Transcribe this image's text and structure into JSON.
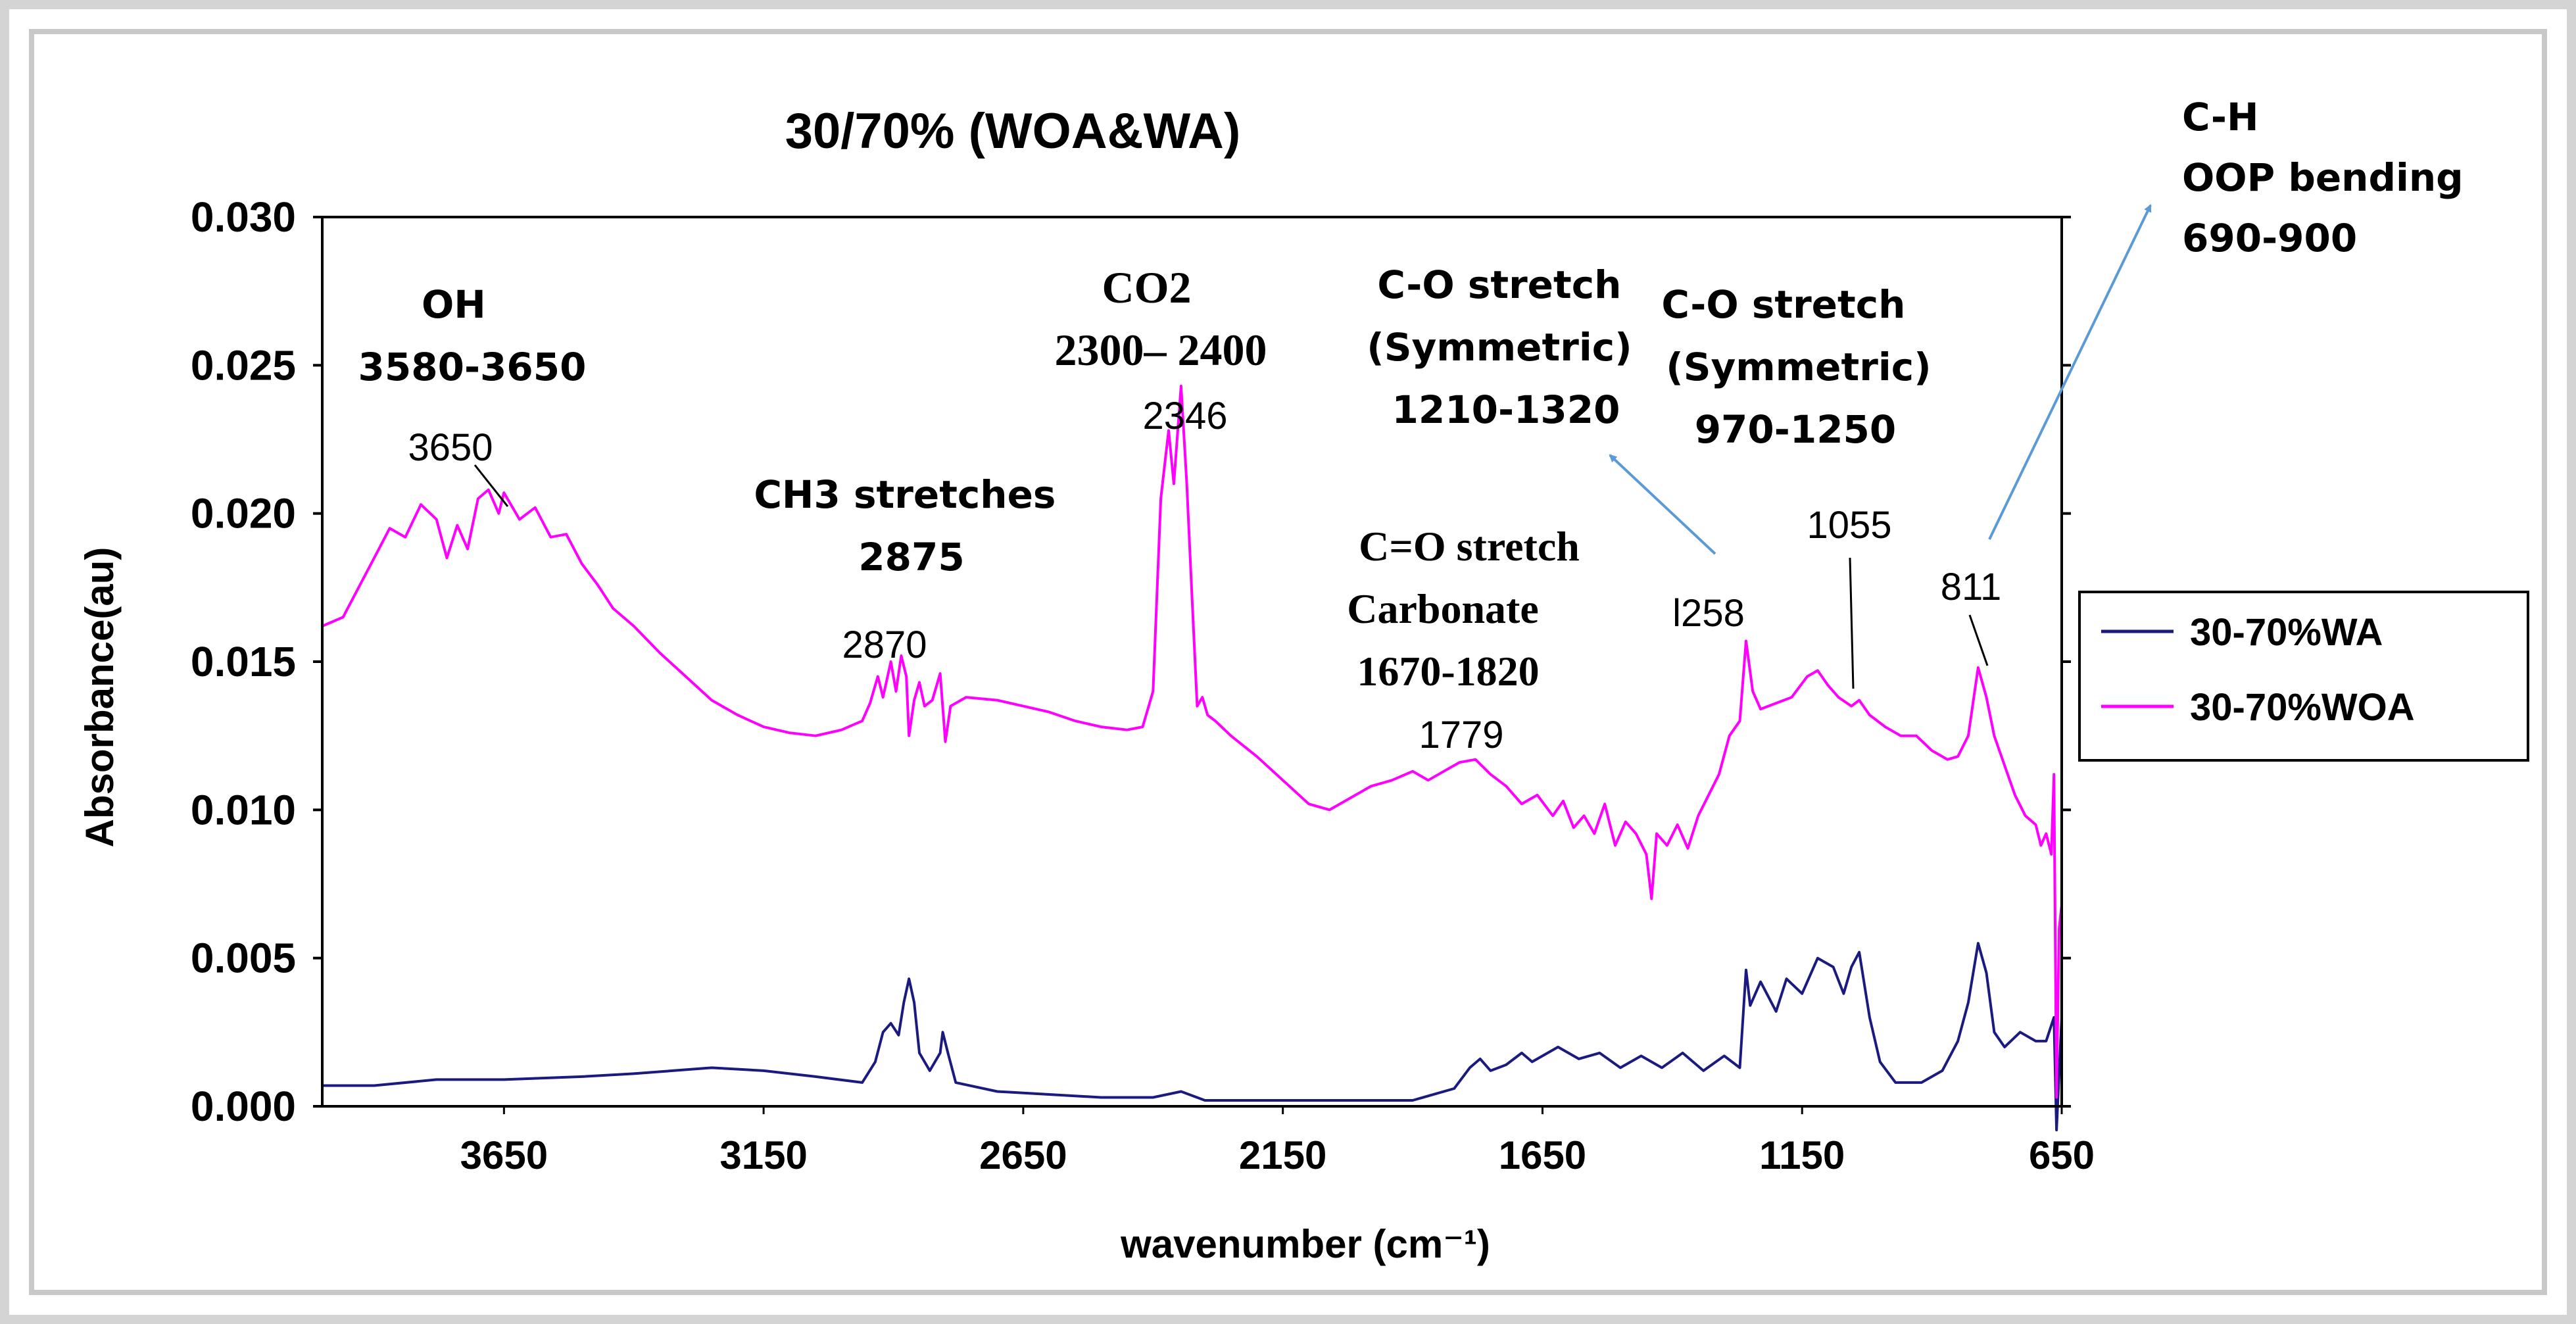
{
  "chart_data": {
    "type": "line",
    "title": "30/70% (WOA&WA)",
    "xlabel": "wavenumber (cm⁻¹)",
    "ylabel": "Absorbance(au)",
    "xlim": [
      4000,
      650
    ],
    "ylim": [
      0,
      0.03
    ],
    "x_ticks": [
      3650,
      3150,
      2650,
      2150,
      1650,
      1150,
      650
    ],
    "x_tick_labels": [
      "3650",
      "3150",
      "2650",
      "2150",
      "1650",
      "1150",
      "650"
    ],
    "y_ticks": [
      0,
      0.005,
      0.01,
      0.015,
      0.02,
      0.025,
      0.03
    ],
    "y_tick_labels": [
      "0.000",
      "0.005",
      "0.010",
      "0.015",
      "0.020",
      "0.025",
      "0.030"
    ],
    "legend_position": "right",
    "series": [
      {
        "name": "30-70%WA",
        "color": "#1a1a80",
        "points": [
          [
            4000,
            0.0007
          ],
          [
            3900,
            0.0007
          ],
          [
            3780,
            0.0009
          ],
          [
            3650,
            0.0009
          ],
          [
            3500,
            0.001
          ],
          [
            3400,
            0.0011
          ],
          [
            3250,
            0.0013
          ],
          [
            3150,
            0.0012
          ],
          [
            3050,
            0.001
          ],
          [
            2960,
            0.0008
          ],
          [
            2935,
            0.0015
          ],
          [
            2920,
            0.0025
          ],
          [
            2905,
            0.0028
          ],
          [
            2890,
            0.0024
          ],
          [
            2880,
            0.0035
          ],
          [
            2870,
            0.0043
          ],
          [
            2860,
            0.0035
          ],
          [
            2850,
            0.0018
          ],
          [
            2830,
            0.0012
          ],
          [
            2810,
            0.0018
          ],
          [
            2805,
            0.0025
          ],
          [
            2795,
            0.0018
          ],
          [
            2780,
            0.0008
          ],
          [
            2700,
            0.0005
          ],
          [
            2600,
            0.0004
          ],
          [
            2500,
            0.0003
          ],
          [
            2400,
            0.0003
          ],
          [
            2346,
            0.0005
          ],
          [
            2300,
            0.0002
          ],
          [
            2150,
            0.0002
          ],
          [
            1900,
            0.0002
          ],
          [
            1820,
            0.0006
          ],
          [
            1790,
            0.0013
          ],
          [
            1770,
            0.0016
          ],
          [
            1750,
            0.0012
          ],
          [
            1720,
            0.0014
          ],
          [
            1690,
            0.0018
          ],
          [
            1670,
            0.0015
          ],
          [
            1620,
            0.002
          ],
          [
            1580,
            0.0016
          ],
          [
            1540,
            0.0018
          ],
          [
            1500,
            0.0013
          ],
          [
            1460,
            0.0017
          ],
          [
            1420,
            0.0013
          ],
          [
            1380,
            0.0018
          ],
          [
            1340,
            0.0012
          ],
          [
            1300,
            0.0017
          ],
          [
            1270,
            0.0013
          ],
          [
            1258,
            0.0046
          ],
          [
            1250,
            0.0034
          ],
          [
            1230,
            0.0042
          ],
          [
            1200,
            0.0032
          ],
          [
            1180,
            0.0043
          ],
          [
            1150,
            0.0038
          ],
          [
            1120,
            0.005
          ],
          [
            1090,
            0.0047
          ],
          [
            1070,
            0.0038
          ],
          [
            1055,
            0.0047
          ],
          [
            1040,
            0.0052
          ],
          [
            1020,
            0.003
          ],
          [
            1000,
            0.0015
          ],
          [
            970,
            0.0008
          ],
          [
            920,
            0.0008
          ],
          [
            880,
            0.0012
          ],
          [
            850,
            0.0022
          ],
          [
            830,
            0.0035
          ],
          [
            811,
            0.0055
          ],
          [
            795,
            0.0045
          ],
          [
            780,
            0.0025
          ],
          [
            760,
            0.002
          ],
          [
            730,
            0.0025
          ],
          [
            700,
            0.0022
          ],
          [
            680,
            0.0022
          ],
          [
            665,
            0.003
          ],
          [
            660,
            -0.0008
          ],
          [
            650,
            0.003
          ]
        ]
      },
      {
        "name": "30-70%WOA",
        "color": "#ff00ff",
        "points": [
          [
            4000,
            0.0162
          ],
          [
            3960,
            0.0165
          ],
          [
            3930,
            0.0175
          ],
          [
            3900,
            0.0185
          ],
          [
            3870,
            0.0195
          ],
          [
            3840,
            0.0192
          ],
          [
            3810,
            0.0203
          ],
          [
            3780,
            0.0198
          ],
          [
            3760,
            0.0185
          ],
          [
            3740,
            0.0196
          ],
          [
            3720,
            0.0188
          ],
          [
            3700,
            0.0205
          ],
          [
            3680,
            0.0208
          ],
          [
            3660,
            0.02
          ],
          [
            3650,
            0.0207
          ],
          [
            3620,
            0.0198
          ],
          [
            3590,
            0.0202
          ],
          [
            3560,
            0.0192
          ],
          [
            3530,
            0.0193
          ],
          [
            3500,
            0.0183
          ],
          [
            3470,
            0.0176
          ],
          [
            3440,
            0.0168
          ],
          [
            3400,
            0.0162
          ],
          [
            3350,
            0.0153
          ],
          [
            3300,
            0.0145
          ],
          [
            3250,
            0.0137
          ],
          [
            3200,
            0.0132
          ],
          [
            3150,
            0.0128
          ],
          [
            3100,
            0.0126
          ],
          [
            3050,
            0.0125
          ],
          [
            3000,
            0.0127
          ],
          [
            2960,
            0.013
          ],
          [
            2945,
            0.0136
          ],
          [
            2930,
            0.0145
          ],
          [
            2920,
            0.0138
          ],
          [
            2905,
            0.015
          ],
          [
            2895,
            0.014
          ],
          [
            2885,
            0.0152
          ],
          [
            2875,
            0.0145
          ],
          [
            2870,
            0.0125
          ],
          [
            2860,
            0.0137
          ],
          [
            2850,
            0.0143
          ],
          [
            2840,
            0.0135
          ],
          [
            2825,
            0.0137
          ],
          [
            2810,
            0.0146
          ],
          [
            2800,
            0.0123
          ],
          [
            2790,
            0.0135
          ],
          [
            2760,
            0.0138
          ],
          [
            2700,
            0.0137
          ],
          [
            2650,
            0.0135
          ],
          [
            2600,
            0.0133
          ],
          [
            2550,
            0.013
          ],
          [
            2500,
            0.0128
          ],
          [
            2450,
            0.0127
          ],
          [
            2420,
            0.0128
          ],
          [
            2400,
            0.014
          ],
          [
            2385,
            0.0205
          ],
          [
            2370,
            0.0228
          ],
          [
            2360,
            0.021
          ],
          [
            2346,
            0.0243
          ],
          [
            2335,
            0.021
          ],
          [
            2325,
            0.0172
          ],
          [
            2315,
            0.0135
          ],
          [
            2305,
            0.0138
          ],
          [
            2295,
            0.0132
          ],
          [
            2280,
            0.013
          ],
          [
            2250,
            0.0125
          ],
          [
            2200,
            0.0118
          ],
          [
            2150,
            0.011
          ],
          [
            2100,
            0.0102
          ],
          [
            2060,
            0.01
          ],
          [
            2020,
            0.0104
          ],
          [
            1980,
            0.0108
          ],
          [
            1940,
            0.011
          ],
          [
            1900,
            0.0113
          ],
          [
            1870,
            0.011
          ],
          [
            1840,
            0.0113
          ],
          [
            1810,
            0.0116
          ],
          [
            1779,
            0.0117
          ],
          [
            1750,
            0.0112
          ],
          [
            1720,
            0.0108
          ],
          [
            1690,
            0.0102
          ],
          [
            1660,
            0.0105
          ],
          [
            1630,
            0.0098
          ],
          [
            1610,
            0.0103
          ],
          [
            1590,
            0.0094
          ],
          [
            1570,
            0.0098
          ],
          [
            1550,
            0.0092
          ],
          [
            1530,
            0.0102
          ],
          [
            1510,
            0.0088
          ],
          [
            1490,
            0.0096
          ],
          [
            1470,
            0.0092
          ],
          [
            1450,
            0.0085
          ],
          [
            1440,
            0.007
          ],
          [
            1430,
            0.0092
          ],
          [
            1410,
            0.0088
          ],
          [
            1390,
            0.0095
          ],
          [
            1370,
            0.0087
          ],
          [
            1350,
            0.0098
          ],
          [
            1330,
            0.0105
          ],
          [
            1310,
            0.0112
          ],
          [
            1290,
            0.0125
          ],
          [
            1270,
            0.013
          ],
          [
            1258,
            0.0157
          ],
          [
            1245,
            0.014
          ],
          [
            1230,
            0.0134
          ],
          [
            1200,
            0.0136
          ],
          [
            1170,
            0.0138
          ],
          [
            1140,
            0.0145
          ],
          [
            1120,
            0.0147
          ],
          [
            1100,
            0.0142
          ],
          [
            1080,
            0.0138
          ],
          [
            1055,
            0.0135
          ],
          [
            1040,
            0.0137
          ],
          [
            1020,
            0.0132
          ],
          [
            990,
            0.0128
          ],
          [
            960,
            0.0125
          ],
          [
            930,
            0.0125
          ],
          [
            900,
            0.012
          ],
          [
            870,
            0.0117
          ],
          [
            850,
            0.0118
          ],
          [
            830,
            0.0125
          ],
          [
            811,
            0.0148
          ],
          [
            795,
            0.0138
          ],
          [
            780,
            0.0125
          ],
          [
            760,
            0.0115
          ],
          [
            740,
            0.0105
          ],
          [
            720,
            0.0098
          ],
          [
            700,
            0.0095
          ],
          [
            690,
            0.0088
          ],
          [
            680,
            0.0092
          ],
          [
            670,
            0.0085
          ],
          [
            665,
            0.0112
          ],
          [
            660,
            0.0003
          ],
          [
            655,
            0.006
          ],
          [
            650,
            0.0068
          ]
        ]
      }
    ],
    "annotations": [
      {
        "id": "oh",
        "lines": [
          "OH",
          "3580-3650"
        ]
      },
      {
        "id": "3650",
        "lines": [
          "3650"
        ]
      },
      {
        "id": "ch3",
        "lines": [
          "CH3 stretches",
          "2875"
        ]
      },
      {
        "id": "2870",
        "lines": [
          "2870"
        ]
      },
      {
        "id": "co2",
        "lines": [
          "CO2",
          "2300– 2400"
        ]
      },
      {
        "id": "2346",
        "lines": [
          "2346"
        ]
      },
      {
        "id": "cos1",
        "lines": [
          "C-O stretch",
          "(Symmetric)",
          "1210-1320"
        ]
      },
      {
        "id": "cos2",
        "lines": [
          "C-O stretch",
          "(Symmetric)",
          "970-1250"
        ]
      },
      {
        "id": "coc",
        "lines": [
          "C=O stretch",
          "Carbonate",
          "1670-1820"
        ]
      },
      {
        "id": "1779",
        "lines": [
          "1779"
        ]
      },
      {
        "id": "1258",
        "lines": [
          "l258"
        ]
      },
      {
        "id": "1055",
        "lines": [
          "1055"
        ]
      },
      {
        "id": "811",
        "lines": [
          "811"
        ]
      },
      {
        "id": "ch",
        "lines": [
          "C-H",
          "OOP bending",
          "690-900"
        ]
      }
    ]
  }
}
